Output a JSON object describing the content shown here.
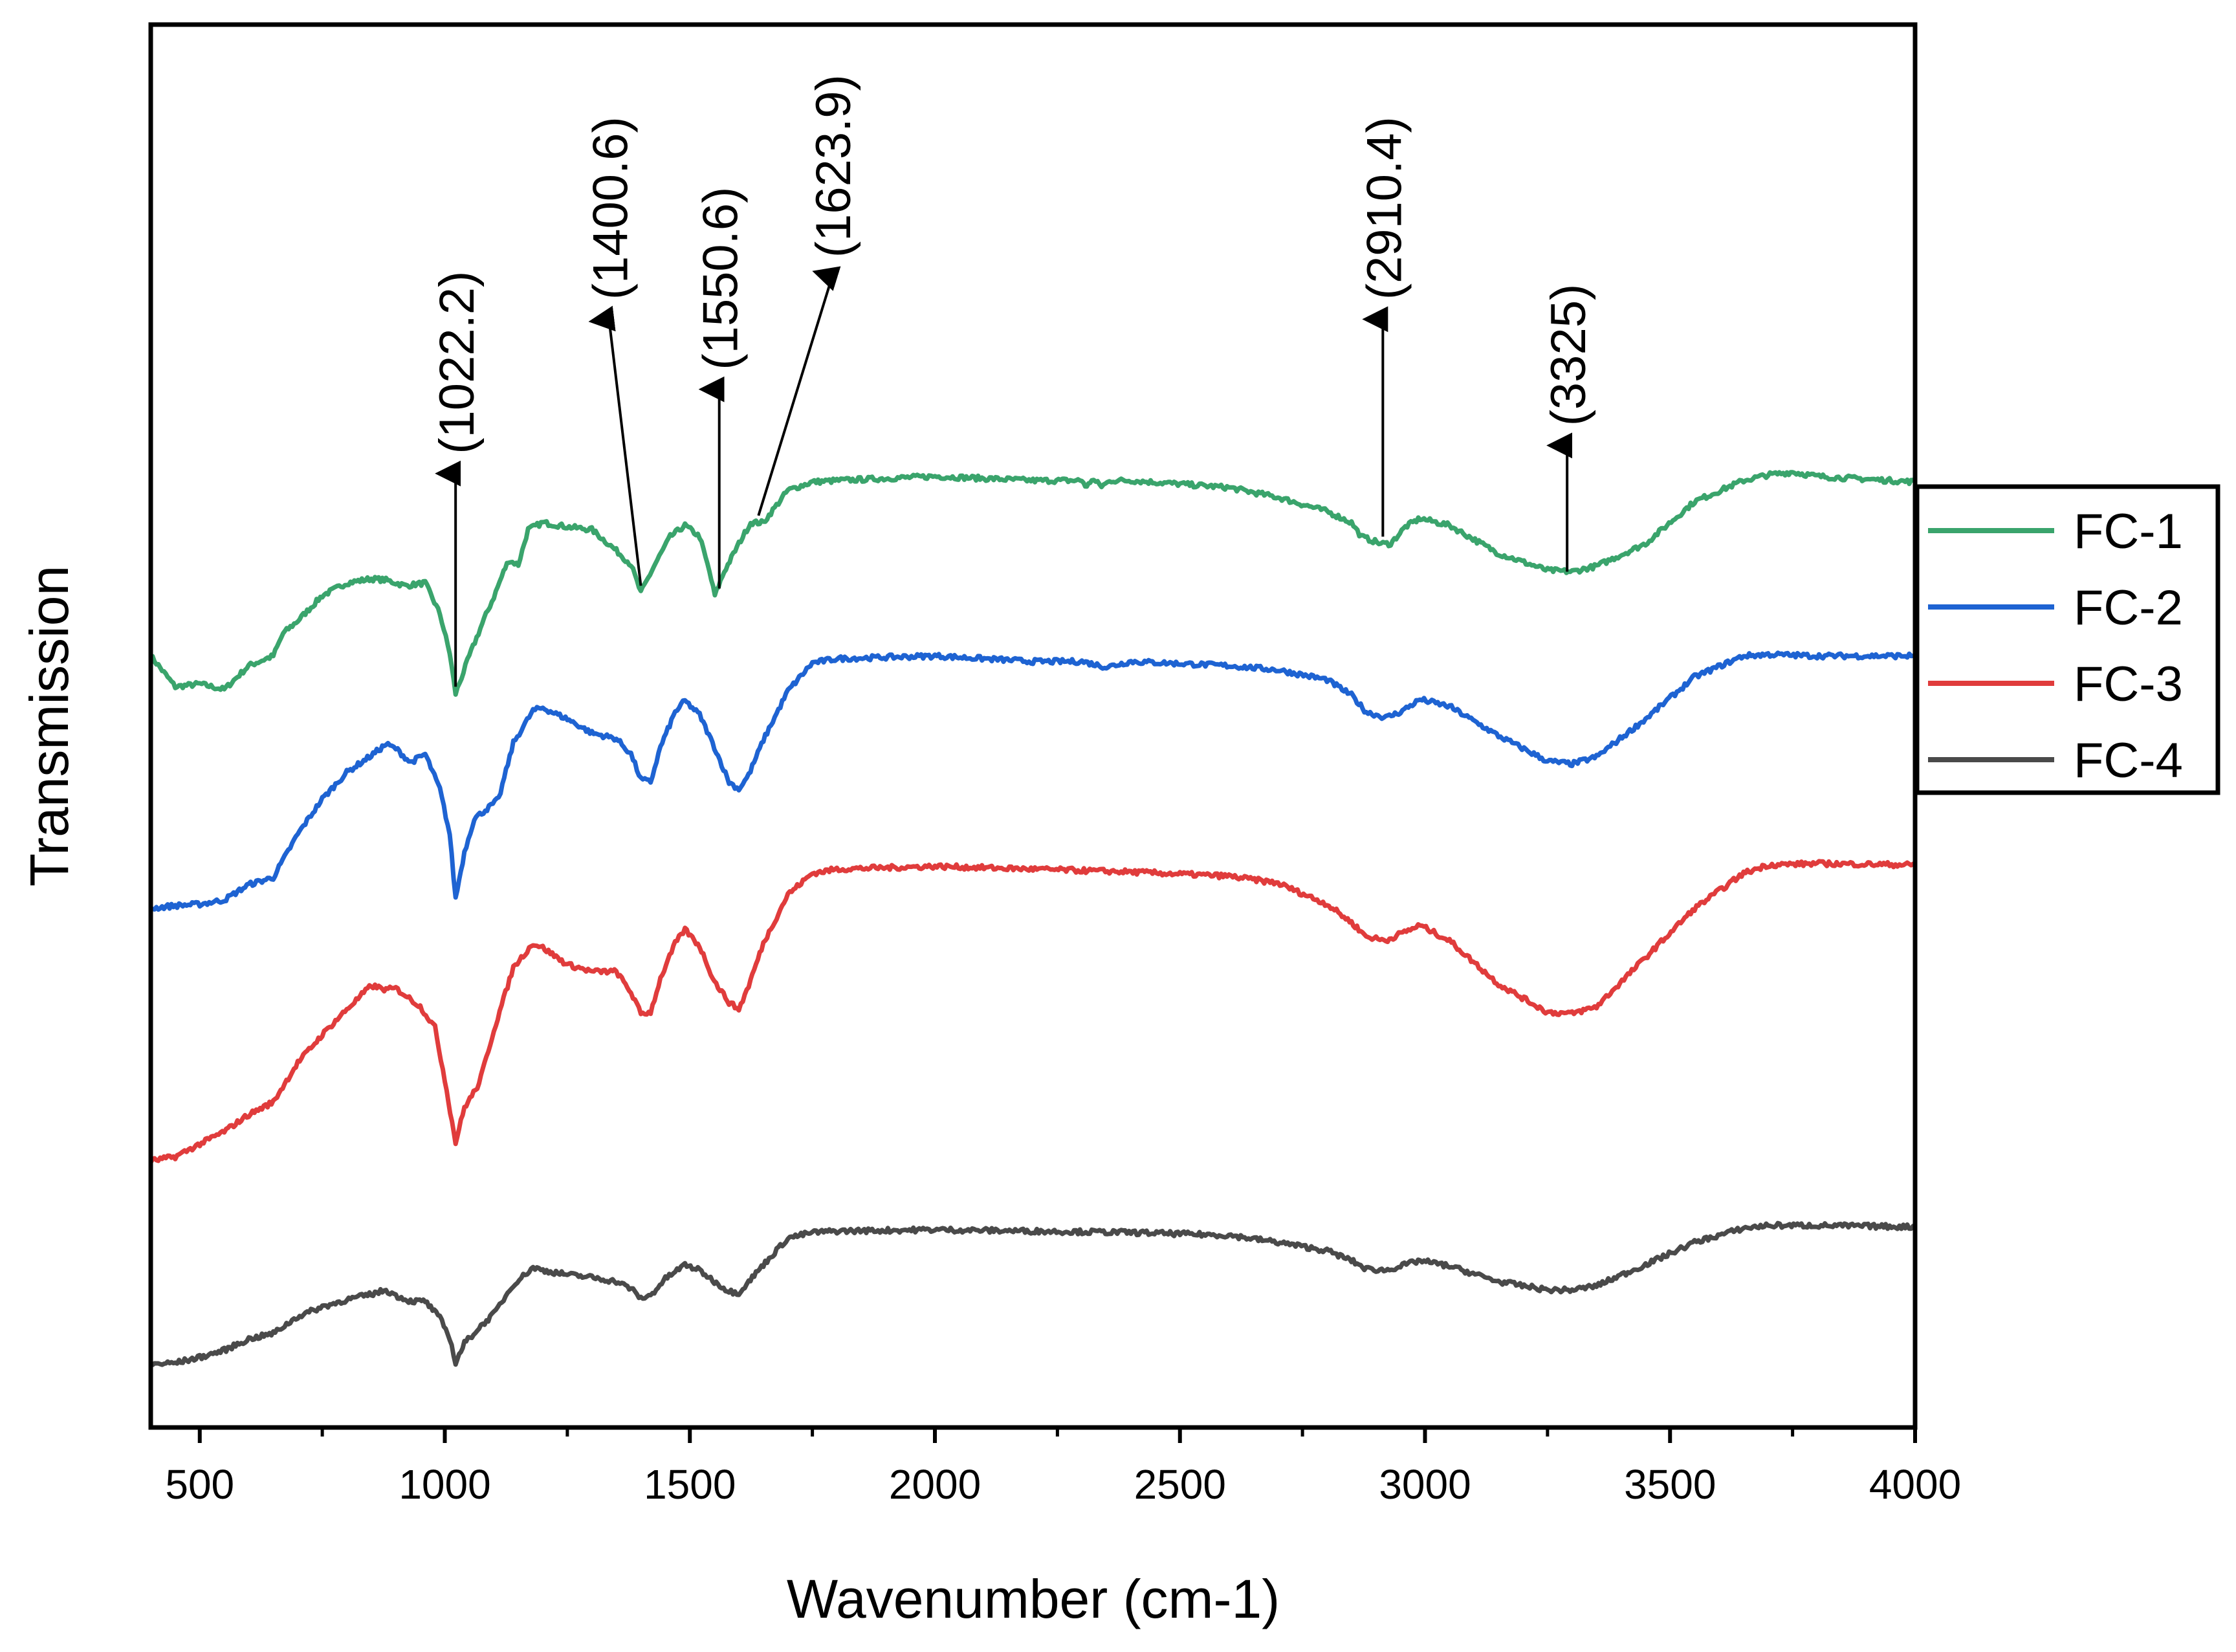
{
  "chart_data": {
    "type": "line",
    "title": "",
    "xlabel": "Wavenumber (cm-1)",
    "ylabel": "Transmission",
    "xlim": [
      400,
      4000
    ],
    "ylim": [
      0,
      100
    ],
    "x_ticks": [
      500,
      1000,
      1500,
      2000,
      2500,
      3000,
      3500,
      4000
    ],
    "y_ticks_visible": false,
    "grid": false,
    "legend_position": "right",
    "series": [
      {
        "name": "FC-1",
        "color": "#3aa46c",
        "points": [
          [
            400,
            55.0
          ],
          [
            450,
            52.8
          ],
          [
            500,
            53.0
          ],
          [
            550,
            52.6
          ],
          [
            600,
            54.3
          ],
          [
            650,
            55.0
          ],
          [
            670,
            56.6
          ],
          [
            700,
            57.5
          ],
          [
            750,
            59.3
          ],
          [
            800,
            60.2
          ],
          [
            850,
            60.5
          ],
          [
            880,
            60.4
          ],
          [
            920,
            60.0
          ],
          [
            960,
            60.2
          ],
          [
            990,
            58.0
          ],
          [
            1010,
            55.2
          ],
          [
            1022,
            52.3
          ],
          [
            1050,
            55.0
          ],
          [
            1080,
            57.6
          ],
          [
            1100,
            59.2
          ],
          [
            1120,
            61.0
          ],
          [
            1130,
            61.8
          ],
          [
            1150,
            61.5
          ],
          [
            1170,
            64.0
          ],
          [
            1200,
            64.5
          ],
          [
            1250,
            64.2
          ],
          [
            1300,
            64.0
          ],
          [
            1350,
            62.5
          ],
          [
            1380,
            61.5
          ],
          [
            1400,
            59.5
          ],
          [
            1430,
            61.6
          ],
          [
            1460,
            63.5
          ],
          [
            1490,
            64.3
          ],
          [
            1520,
            63.5
          ],
          [
            1540,
            61.0
          ],
          [
            1551,
            59.3
          ],
          [
            1570,
            61.0
          ],
          [
            1600,
            63.0
          ],
          [
            1624,
            64.5
          ],
          [
            1650,
            64.5
          ],
          [
            1700,
            66.8
          ],
          [
            1750,
            67.4
          ],
          [
            1800,
            67.5
          ],
          [
            2000,
            67.8
          ],
          [
            2200,
            67.5
          ],
          [
            2300,
            67.5
          ],
          [
            2310,
            67.0
          ],
          [
            2320,
            67.6
          ],
          [
            2340,
            67.1
          ],
          [
            2360,
            67.5
          ],
          [
            2400,
            67.5
          ],
          [
            2600,
            67.0
          ],
          [
            2700,
            66.3
          ],
          [
            2800,
            65.3
          ],
          [
            2850,
            64.5
          ],
          [
            2870,
            63.5
          ],
          [
            2910,
            63.0
          ],
          [
            2930,
            63.0
          ],
          [
            2960,
            64.2
          ],
          [
            2990,
            64.8
          ],
          [
            3050,
            64.3
          ],
          [
            3150,
            62.3
          ],
          [
            3250,
            61.1
          ],
          [
            3300,
            61.0
          ],
          [
            3350,
            61.4
          ],
          [
            3450,
            63.0
          ],
          [
            3550,
            66.0
          ],
          [
            3650,
            67.5
          ],
          [
            3700,
            67.9
          ],
          [
            3750,
            68.1
          ],
          [
            3800,
            67.8
          ],
          [
            3900,
            67.6
          ],
          [
            4000,
            67.4
          ]
        ]
      },
      {
        "name": "FC-2",
        "color": "#1e63d2",
        "points": [
          [
            400,
            37.0
          ],
          [
            450,
            37.2
          ],
          [
            500,
            37.3
          ],
          [
            550,
            37.6
          ],
          [
            600,
            38.7
          ],
          [
            650,
            39.2
          ],
          [
            700,
            42.3
          ],
          [
            750,
            44.8
          ],
          [
            800,
            46.7
          ],
          [
            850,
            47.9
          ],
          [
            880,
            48.7
          ],
          [
            900,
            48.4
          ],
          [
            930,
            47.4
          ],
          [
            960,
            48.0
          ],
          [
            990,
            45.5
          ],
          [
            1010,
            42.3
          ],
          [
            1022,
            37.7
          ],
          [
            1040,
            41.0
          ],
          [
            1060,
            43.4
          ],
          [
            1090,
            44.2
          ],
          [
            1110,
            44.8
          ],
          [
            1140,
            48.8
          ],
          [
            1180,
            51.1
          ],
          [
            1200,
            51.3
          ],
          [
            1250,
            50.5
          ],
          [
            1300,
            49.5
          ],
          [
            1350,
            49.1
          ],
          [
            1380,
            48.0
          ],
          [
            1400,
            46.2
          ],
          [
            1420,
            46.0
          ],
          [
            1440,
            48.5
          ],
          [
            1470,
            51.0
          ],
          [
            1490,
            51.8
          ],
          [
            1520,
            50.8
          ],
          [
            1550,
            48.5
          ],
          [
            1580,
            46.0
          ],
          [
            1600,
            45.5
          ],
          [
            1620,
            46.5
          ],
          [
            1650,
            49.0
          ],
          [
            1700,
            52.5
          ],
          [
            1750,
            54.5
          ],
          [
            1800,
            54.8
          ],
          [
            2000,
            55.0
          ],
          [
            2200,
            54.6
          ],
          [
            2300,
            54.6
          ],
          [
            2350,
            54.2
          ],
          [
            2400,
            54.6
          ],
          [
            2600,
            54.3
          ],
          [
            2700,
            54.0
          ],
          [
            2800,
            53.3
          ],
          [
            2850,
            52.2
          ],
          [
            2880,
            51.0
          ],
          [
            2920,
            50.6
          ],
          [
            2950,
            51.0
          ],
          [
            2990,
            51.9
          ],
          [
            3050,
            51.4
          ],
          [
            3150,
            49.3
          ],
          [
            3250,
            47.5
          ],
          [
            3300,
            47.3
          ],
          [
            3350,
            47.8
          ],
          [
            3450,
            50.5
          ],
          [
            3550,
            53.5
          ],
          [
            3650,
            55.0
          ],
          [
            3700,
            55.1
          ],
          [
            3800,
            55.0
          ],
          [
            4000,
            55.0
          ]
        ]
      },
      {
        "name": "FC-3",
        "color": "#e03c3c",
        "points": [
          [
            400,
            19.0
          ],
          [
            450,
            19.3
          ],
          [
            500,
            20.2
          ],
          [
            550,
            21.1
          ],
          [
            600,
            22.3
          ],
          [
            650,
            23.2
          ],
          [
            700,
            26.0
          ],
          [
            750,
            28.0
          ],
          [
            800,
            29.8
          ],
          [
            850,
            31.5
          ],
          [
            880,
            31.2
          ],
          [
            900,
            31.3
          ],
          [
            920,
            30.8
          ],
          [
            950,
            30.0
          ],
          [
            980,
            28.5
          ],
          [
            1000,
            24.8
          ],
          [
            1022,
            20.3
          ],
          [
            1040,
            22.8
          ],
          [
            1070,
            24.5
          ],
          [
            1100,
            28.3
          ],
          [
            1140,
            32.8
          ],
          [
            1180,
            34.5
          ],
          [
            1200,
            34.2
          ],
          [
            1250,
            33.0
          ],
          [
            1300,
            32.5
          ],
          [
            1350,
            32.5
          ],
          [
            1380,
            31.0
          ],
          [
            1400,
            29.5
          ],
          [
            1420,
            29.6
          ],
          [
            1440,
            32.0
          ],
          [
            1470,
            34.5
          ],
          [
            1490,
            35.5
          ],
          [
            1520,
            34.3
          ],
          [
            1550,
            31.8
          ],
          [
            1580,
            30.3
          ],
          [
            1600,
            29.8
          ],
          [
            1620,
            31.5
          ],
          [
            1650,
            34.5
          ],
          [
            1700,
            38.0
          ],
          [
            1750,
            39.5
          ],
          [
            1800,
            39.8
          ],
          [
            2000,
            40.0
          ],
          [
            2200,
            39.8
          ],
          [
            2400,
            39.6
          ],
          [
            2600,
            39.3
          ],
          [
            2700,
            38.8
          ],
          [
            2800,
            37.3
          ],
          [
            2850,
            36.0
          ],
          [
            2880,
            35.0
          ],
          [
            2920,
            34.7
          ],
          [
            2950,
            35.2
          ],
          [
            2990,
            35.8
          ],
          [
            3050,
            34.7
          ],
          [
            3150,
            31.6
          ],
          [
            3250,
            29.6
          ],
          [
            3300,
            29.5
          ],
          [
            3350,
            30.0
          ],
          [
            3450,
            33.5
          ],
          [
            3550,
            37.0
          ],
          [
            3650,
            39.5
          ],
          [
            3700,
            40.1
          ],
          [
            3800,
            40.2
          ],
          [
            4000,
            40.1
          ]
        ]
      },
      {
        "name": "FC-4",
        "color": "#4a4a4a",
        "points": [
          [
            400,
            4.5
          ],
          [
            450,
            4.6
          ],
          [
            500,
            5.0
          ],
          [
            550,
            5.5
          ],
          [
            600,
            6.3
          ],
          [
            650,
            6.7
          ],
          [
            700,
            7.9
          ],
          [
            750,
            8.6
          ],
          [
            800,
            9.1
          ],
          [
            850,
            9.5
          ],
          [
            880,
            9.8
          ],
          [
            900,
            9.4
          ],
          [
            930,
            9.0
          ],
          [
            960,
            9.0
          ],
          [
            990,
            7.8
          ],
          [
            1010,
            6.4
          ],
          [
            1022,
            4.6
          ],
          [
            1040,
            6.0
          ],
          [
            1070,
            7.1
          ],
          [
            1100,
            8.1
          ],
          [
            1140,
            10.2
          ],
          [
            1180,
            11.4
          ],
          [
            1200,
            11.2
          ],
          [
            1250,
            10.9
          ],
          [
            1300,
            10.7
          ],
          [
            1350,
            10.4
          ],
          [
            1380,
            9.9
          ],
          [
            1400,
            9.2
          ],
          [
            1420,
            9.4
          ],
          [
            1450,
            10.6
          ],
          [
            1490,
            11.6
          ],
          [
            1520,
            11.2
          ],
          [
            1550,
            10.4
          ],
          [
            1580,
            9.7
          ],
          [
            1600,
            9.6
          ],
          [
            1620,
            10.4
          ],
          [
            1650,
            11.6
          ],
          [
            1700,
            13.5
          ],
          [
            1750,
            13.9
          ],
          [
            1800,
            14.0
          ],
          [
            2000,
            14.1
          ],
          [
            2200,
            14.0
          ],
          [
            2400,
            13.9
          ],
          [
            2600,
            13.7
          ],
          [
            2700,
            13.2
          ],
          [
            2800,
            12.6
          ],
          [
            2850,
            11.9
          ],
          [
            2880,
            11.3
          ],
          [
            2920,
            11.2
          ],
          [
            2950,
            11.5
          ],
          [
            2990,
            11.9
          ],
          [
            3050,
            11.5
          ],
          [
            3150,
            10.4
          ],
          [
            3250,
            9.8
          ],
          [
            3300,
            9.8
          ],
          [
            3350,
            10.1
          ],
          [
            3450,
            11.6
          ],
          [
            3550,
            13.2
          ],
          [
            3650,
            14.2
          ],
          [
            3700,
            14.4
          ],
          [
            3800,
            14.4
          ],
          [
            4000,
            14.3
          ]
        ]
      }
    ],
    "annotations": [
      {
        "label": "(1022.2)",
        "x": 1022,
        "y_tip": 68,
        "y_base": 52.8
      },
      {
        "label": "(1400.6)",
        "x_tip": 1335,
        "y_tip": 79,
        "x_base": 1400,
        "y_base": 60
      },
      {
        "label": "(1550.6)",
        "x": 1560,
        "y_tip": 74,
        "y_base": 59.8
      },
      {
        "label": "(1623.9)",
        "x_tip": 1790,
        "y_tip": 82,
        "x_base": 1640,
        "y_base": 65
      },
      {
        "label": "(2910.4)",
        "x": 2914,
        "y_tip": 79,
        "y_base": 63.5
      },
      {
        "label": "(3325)",
        "x": 3290,
        "y_tip": 70,
        "y_base": 61.0
      }
    ]
  }
}
